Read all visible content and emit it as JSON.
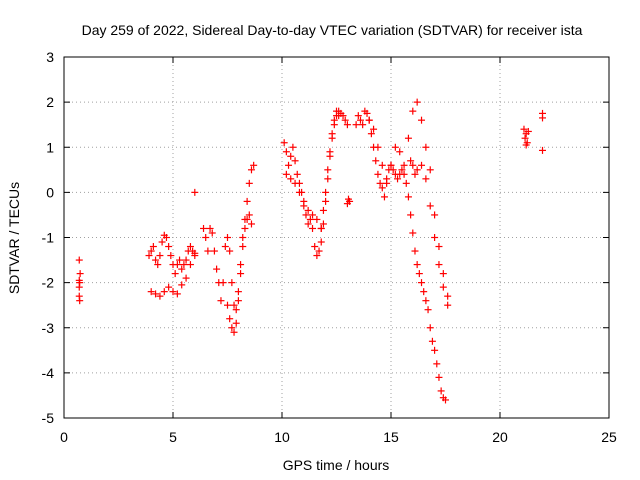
{
  "chart_data": {
    "type": "scatter",
    "title": "Day 259 of 2022, Sidereal Day-to-day VTEC variation (SDTVAR) for receiver ista",
    "xlabel": "GPS time / hours",
    "ylabel": "SDTVAR / TECUs",
    "xlim": [
      0,
      25
    ],
    "ylim": [
      -5,
      3
    ],
    "xticks": [
      0,
      5,
      10,
      15,
      20,
      25
    ],
    "yticks": [
      -5,
      -4,
      -3,
      -2,
      -1,
      0,
      1,
      2,
      3
    ],
    "grid": true,
    "marker": "+",
    "color": "#ff0000",
    "series": [
      {
        "name": "SDTVAR",
        "traces": [
          {
            "x": [
              0.7,
              0.7,
              0.72,
              0.74,
              0.7,
              0.72,
              0.7
            ],
            "y": [
              -1.5,
              -1.95,
              -2.0,
              -1.8,
              -2.3,
              -2.4,
              -2.1
            ]
          },
          {
            "x": [
              3.9,
              4.0,
              4.1,
              4.2,
              4.3,
              4.4,
              4.5,
              4.6,
              4.7,
              4.8,
              4.9,
              5.0,
              5.1,
              5.2,
              5.3,
              5.4,
              5.5,
              5.6,
              5.7,
              5.8,
              5.9,
              6.0
            ],
            "y": [
              -1.4,
              -1.3,
              -1.2,
              -1.5,
              -1.6,
              -1.4,
              -1.1,
              -0.95,
              -1.0,
              -1.2,
              -1.4,
              -1.6,
              -1.8,
              -1.6,
              -1.5,
              -1.7,
              -1.6,
              -1.5,
              -1.3,
              -1.2,
              -1.3,
              -1.4
            ]
          },
          {
            "x": [
              4.0,
              4.2,
              4.4,
              4.6,
              4.8,
              5.0,
              5.2,
              5.4,
              5.6,
              5.8,
              6.0
            ],
            "y": [
              -2.2,
              -2.25,
              -2.3,
              -2.2,
              -2.1,
              -2.2,
              -2.25,
              -2.05,
              -1.9,
              -1.6,
              -1.35
            ]
          },
          {
            "x": [
              6.0
            ],
            "y": [
              0.0
            ]
          },
          {
            "x": [
              6.4,
              6.5,
              6.6,
              6.7,
              6.8,
              6.9,
              7.0,
              7.1,
              7.2,
              7.3,
              7.4,
              7.5,
              7.6,
              7.7,
              7.8,
              7.9,
              8.0,
              8.1,
              8.2,
              8.3,
              8.4,
              8.5,
              8.6,
              8.7
            ],
            "y": [
              -0.8,
              -1.0,
              -1.3,
              -0.8,
              -0.9,
              -1.3,
              -1.7,
              -2.0,
              -2.4,
              -2.0,
              -1.2,
              -1.0,
              -1.3,
              -2.0,
              -2.5,
              -2.6,
              -2.2,
              -1.6,
              -1.0,
              -0.6,
              -0.2,
              0.2,
              0.5,
              0.6
            ]
          },
          {
            "x": [
              7.5,
              7.6,
              7.7,
              7.8,
              7.9,
              8.0,
              8.1,
              8.2,
              8.3,
              8.4,
              8.5,
              8.6
            ],
            "y": [
              -2.5,
              -2.8,
              -3.0,
              -3.1,
              -2.9,
              -2.4,
              -1.8,
              -1.2,
              -0.8,
              -0.6,
              -0.5,
              -0.7
            ]
          },
          {
            "x": [
              10.1,
              10.2,
              10.3,
              10.4,
              10.5,
              10.6,
              10.7,
              10.8,
              10.9,
              11.0,
              11.1,
              11.2,
              11.3,
              11.4,
              11.5,
              11.6,
              11.7,
              11.8,
              11.9,
              12.0,
              12.1,
              12.2,
              12.3,
              12.4,
              12.5,
              12.6,
              12.7,
              12.8,
              12.9,
              13.0
            ],
            "y": [
              1.1,
              0.9,
              0.6,
              0.8,
              1.0,
              0.7,
              0.4,
              0.2,
              0.0,
              -0.3,
              -0.5,
              -0.7,
              -0.6,
              -0.8,
              -1.2,
              -1.4,
              -1.3,
              -1.1,
              -0.7,
              -0.2,
              0.3,
              0.8,
              1.2,
              1.5,
              1.7,
              1.8,
              1.75,
              1.7,
              1.6,
              1.5
            ]
          },
          {
            "x": [
              10.2,
              10.4,
              10.6,
              10.8,
              11.0,
              11.2,
              11.4,
              11.6,
              11.8
            ],
            "y": [
              0.4,
              0.3,
              0.2,
              0.0,
              -0.2,
              -0.4,
              -0.5,
              -0.6,
              -0.8
            ]
          },
          {
            "x": [
              11.8,
              11.9,
              12.0,
              12.1,
              12.2,
              12.3,
              12.4,
              12.5,
              12.6
            ],
            "y": [
              -0.8,
              -0.4,
              0.0,
              0.5,
              0.9,
              1.3,
              1.6,
              1.8,
              1.7
            ]
          },
          {
            "x": [
              13.0,
              13.05,
              13.1
            ],
            "y": [
              -0.25,
              -0.15,
              -0.2
            ]
          },
          {
            "x": [
              13.4,
              13.5,
              13.6,
              13.7,
              13.8,
              13.9,
              14.0,
              14.1,
              14.2,
              14.3,
              14.4,
              14.5,
              14.6,
              14.7,
              14.8,
              14.9,
              15.0,
              15.1,
              15.2,
              15.3,
              15.4,
              15.5,
              15.6,
              15.7,
              15.8,
              15.9,
              16.0,
              16.1,
              16.2,
              16.3,
              16.4,
              16.5,
              16.6,
              16.7,
              16.8,
              16.9,
              17.0,
              17.1,
              17.2,
              17.3,
              17.4,
              17.5
            ],
            "y": [
              1.5,
              1.7,
              1.6,
              1.5,
              1.8,
              1.75,
              1.6,
              1.3,
              1.0,
              0.7,
              0.4,
              0.2,
              0.1,
              -0.1,
              0.2,
              0.5,
              0.6,
              0.5,
              0.4,
              0.3,
              0.4,
              0.5,
              0.4,
              0.2,
              -0.1,
              -0.5,
              -0.9,
              -1.3,
              -1.6,
              -1.8,
              -2.0,
              -2.2,
              -2.4,
              -2.6,
              -3.0,
              -3.3,
              -3.5,
              -3.8,
              -4.1,
              -4.4,
              -4.55,
              -4.6
            ]
          },
          {
            "x": [
              14.0,
              14.2,
              14.4,
              14.6,
              14.8,
              15.0,
              15.2,
              15.4,
              15.6,
              15.8,
              16.0,
              16.2,
              16.4,
              16.6,
              16.8,
              17.0,
              17.2,
              17.4,
              17.6
            ],
            "y": [
              1.6,
              1.4,
              1.0,
              0.6,
              0.3,
              0.6,
              1.0,
              0.9,
              0.6,
              1.2,
              1.8,
              2.0,
              1.6,
              1.0,
              0.5,
              -0.5,
              -1.2,
              -1.8,
              -2.3
            ]
          },
          {
            "x": [
              15.9,
              16.0,
              16.1,
              16.2,
              16.4,
              16.6,
              16.8,
              17.0,
              17.2,
              17.4,
              17.6
            ],
            "y": [
              0.7,
              0.6,
              0.4,
              0.5,
              0.6,
              0.3,
              -0.3,
              -1.0,
              -1.6,
              -2.1,
              -2.5
            ]
          },
          {
            "x": [
              21.1,
              21.15,
              21.2,
              21.25,
              21.3,
              21.2
            ],
            "y": [
              1.4,
              1.2,
              1.3,
              1.1,
              1.35,
              1.05
            ]
          },
          {
            "x": [
              21.95,
              21.95,
              21.95
            ],
            "y": [
              1.75,
              1.65,
              0.93
            ]
          }
        ]
      }
    ]
  }
}
